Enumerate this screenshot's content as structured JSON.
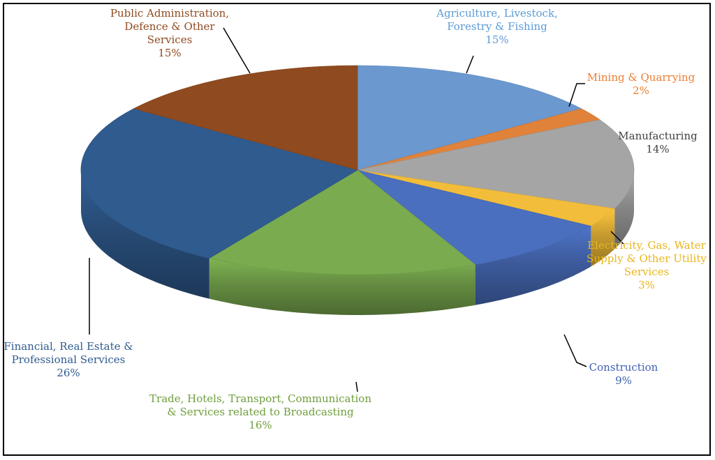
{
  "chart_data": {
    "type": "pie",
    "title": "",
    "style": "3d-pie",
    "slices": [
      {
        "label": "Agriculture, Livestock, Forestry & Fishing",
        "value": 15,
        "display": "15%",
        "color": "#6a98cf",
        "label_lines": [
          "Agriculture, Livestock,",
          "Forestry & Fishing"
        ]
      },
      {
        "label": "Mining & Quarrying",
        "value": 2,
        "display": "2%",
        "color": "#e0823a",
        "label_lines": [
          "Mining & Quarrying"
        ]
      },
      {
        "label": "Manufacturing",
        "value": 14,
        "display": "14%",
        "color": "#a5a5a5",
        "label_lines": [
          "Manufacturing"
        ]
      },
      {
        "label": "Electricity, Gas, Water Supply & Other Utility Services",
        "value": 3,
        "display": "3%",
        "color": "#f2bd3a",
        "label_lines": [
          "Electricity, Gas, Water",
          "Supply & Other Utility",
          "Services"
        ]
      },
      {
        "label": "Construction",
        "value": 9,
        "display": "9%",
        "color": "#4a6fbf",
        "label_lines": [
          "Construction"
        ]
      },
      {
        "label": "Trade, Hotels, Transport, Communication & Services related to Broadcasting",
        "value": 16,
        "display": "16%",
        "color": "#7aab4f",
        "label_lines": [
          "Trade, Hotels, Transport, Communication",
          "& Services related to Broadcasting"
        ]
      },
      {
        "label": "Financial, Real Estate & Professional Services",
        "value": 26,
        "display": "26%",
        "color": "#2f5b8f",
        "label_lines": [
          "Financial, Real Estate &",
          "Professional Services"
        ]
      },
      {
        "label": "Public Administration, Defence & Other Services",
        "value": 15,
        "display": "15%",
        "color": "#8f4a1f",
        "label_lines": [
          "Public Administration,",
          "Defence & Other",
          "Services"
        ]
      }
    ],
    "label_colors": [
      "#5b9bd5",
      "#ed7d31",
      "#404040",
      "#e9b51c",
      "#3e5fb3",
      "#6f9e3c",
      "#2f5b8f",
      "#8f4a1f"
    ]
  }
}
